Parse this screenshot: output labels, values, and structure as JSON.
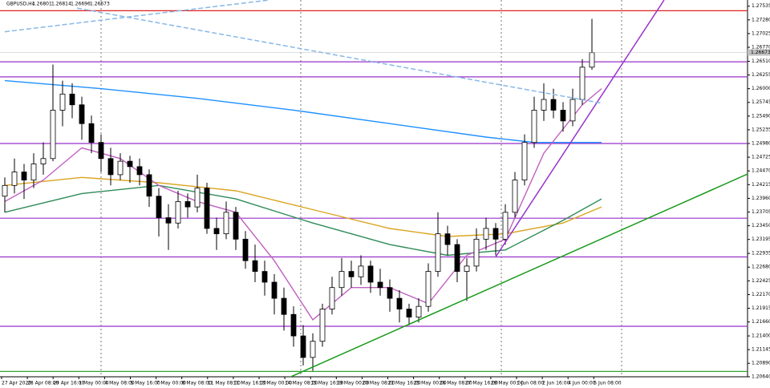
{
  "chart_data": {
    "type": "candlestick",
    "title": "GBPUSD,H4",
    "quote": [
      "1.26801",
      "1.26814",
      "1.26696",
      "1.26673"
    ],
    "current_price": {
      "value": 1.26673,
      "label": "1.26673"
    },
    "ylim": [
      1.2064,
      1.2765
    ],
    "yticks": [
      1.27535,
      {
        "value": 1.2728,
        "label": "1.27280"
      },
      1.27025,
      {
        "value": 1.2677,
        "label": "1.26770"
      },
      {
        "value": 1.2651,
        "label": "1.26510"
      },
      1.26255,
      {
        "value": 1.26,
        "label": "1.26000"
      },
      1.25745,
      {
        "value": 1.2549,
        "label": "1.25490"
      },
      1.25235,
      {
        "value": 1.2498,
        "label": "1.24980"
      },
      1.24725,
      {
        "value": 1.2447,
        "label": "1.24470"
      },
      1.24215,
      {
        "value": 1.2396,
        "label": "1.23960"
      },
      1.23705,
      {
        "value": 1.2345,
        "label": "1.23450"
      },
      1.23195,
      1.22935,
      {
        "value": 1.2268,
        "label": "1.22680"
      },
      1.22425,
      {
        "value": 1.2217,
        "label": "1.22170"
      },
      1.21915,
      {
        "value": 1.2166,
        "label": "1.21660"
      },
      {
        "value": 1.214,
        "label": "1.21400"
      },
      1.21145,
      {
        "value": 1.2089,
        "label": "1.20890"
      },
      {
        "value": 1.2064,
        "label": "1.20640"
      }
    ],
    "categories": [
      "27 Apr 2020",
      "28 Apr 08:00",
      "29 Apr 16:00",
      "1 May 00:00",
      "4 May 08:00",
      "5 May 16:00",
      "7 May 00:00",
      "8 May 08:00",
      "11 May 08:00",
      "11 May 16:00",
      "13 May 00:00",
      "14 May 08:00",
      "15 May 16:00",
      "19 May 00:00",
      "20 May 08:00",
      "21 May 16:00",
      "25 May 00:00",
      "26 May 08:00",
      "27 May 16:00",
      "29 May 00:00",
      "1 Jun 08:00",
      "2 Jun 16:00",
      "4 Jun 00:00",
      "5 Jun 08:00"
    ],
    "candles": [
      [
        1.24,
        1.2435,
        1.237,
        1.242
      ],
      [
        1.242,
        1.247,
        1.2405,
        1.2445
      ],
      [
        1.2445,
        1.246,
        1.2395,
        1.243
      ],
      [
        1.243,
        1.248,
        1.2415,
        1.246
      ],
      [
        1.246,
        1.25,
        1.244,
        1.247
      ],
      [
        1.247,
        1.2645,
        1.2465,
        1.256
      ],
      [
        1.256,
        1.2615,
        1.253,
        1.259
      ],
      [
        1.259,
        1.261,
        1.2545,
        1.257
      ],
      [
        1.257,
        1.2585,
        1.2505,
        1.2535
      ],
      [
        1.2535,
        1.255,
        1.248,
        1.25
      ],
      [
        1.25,
        1.2515,
        1.2445,
        1.247
      ],
      [
        1.247,
        1.249,
        1.242,
        1.244
      ],
      [
        1.244,
        1.248,
        1.243,
        1.2465
      ],
      [
        1.2465,
        1.2475,
        1.2425,
        1.2455
      ],
      [
        1.2455,
        1.247,
        1.242,
        1.244
      ],
      [
        1.244,
        1.245,
        1.238,
        1.24
      ],
      [
        1.24,
        1.2415,
        1.2325,
        1.236
      ],
      [
        1.236,
        1.2385,
        1.23,
        1.235
      ],
      [
        1.235,
        1.241,
        1.234,
        1.239
      ],
      [
        1.239,
        1.2405,
        1.236,
        1.238
      ],
      [
        1.238,
        1.244,
        1.237,
        1.2415
      ],
      [
        1.2415,
        1.2425,
        1.233,
        1.234
      ],
      [
        1.234,
        1.236,
        1.23,
        1.233
      ],
      [
        1.233,
        1.239,
        1.232,
        1.237
      ],
      [
        1.237,
        1.238,
        1.23,
        1.232
      ],
      [
        1.232,
        1.2335,
        1.2265,
        1.228
      ],
      [
        1.228,
        1.231,
        1.224,
        1.226
      ],
      [
        1.226,
        1.228,
        1.2215,
        1.224
      ],
      [
        1.224,
        1.2255,
        1.218,
        1.221
      ],
      [
        1.221,
        1.223,
        1.215,
        1.218
      ],
      [
        1.218,
        1.2195,
        1.212,
        1.214
      ],
      [
        1.214,
        1.216,
        1.2085,
        1.21
      ],
      [
        1.21,
        1.2145,
        1.2075,
        1.213
      ],
      [
        1.213,
        1.22,
        1.212,
        1.219
      ],
      [
        1.219,
        1.225,
        1.218,
        1.223
      ],
      [
        1.223,
        1.2285,
        1.2215,
        1.226
      ],
      [
        1.226,
        1.228,
        1.223,
        1.225
      ],
      [
        1.225,
        1.229,
        1.2235,
        1.227
      ],
      [
        1.227,
        1.228,
        1.222,
        1.224
      ],
      [
        1.224,
        1.2265,
        1.2215,
        1.223
      ],
      [
        1.223,
        1.2245,
        1.2185,
        1.221
      ],
      [
        1.221,
        1.2225,
        1.2165,
        1.219
      ],
      [
        1.219,
        1.22,
        1.216,
        1.2175
      ],
      [
        1.2175,
        1.221,
        1.2165,
        1.2195
      ],
      [
        1.2195,
        1.2275,
        1.2185,
        1.226
      ],
      [
        1.226,
        1.237,
        1.225,
        1.233
      ],
      [
        1.233,
        1.2345,
        1.229,
        1.231
      ],
      [
        1.231,
        1.232,
        1.224,
        1.226
      ],
      [
        1.226,
        1.2285,
        1.2205,
        1.227
      ],
      [
        1.227,
        1.234,
        1.226,
        1.232
      ],
      [
        1.232,
        1.236,
        1.23,
        1.234
      ],
      [
        1.234,
        1.235,
        1.229,
        1.232
      ],
      [
        1.232,
        1.2385,
        1.231,
        1.237
      ],
      [
        1.237,
        1.2445,
        1.236,
        1.243
      ],
      [
        1.243,
        1.2515,
        1.242,
        1.25
      ],
      [
        1.25,
        1.2585,
        1.249,
        1.256
      ],
      [
        1.256,
        1.261,
        1.254,
        1.258
      ],
      [
        1.258,
        1.26,
        1.2545,
        1.256
      ],
      [
        1.256,
        1.2575,
        1.252,
        1.254
      ],
      [
        1.254,
        1.26,
        1.253,
        1.258
      ],
      [
        1.258,
        1.2655,
        1.257,
        1.264
      ],
      [
        1.264,
        1.273,
        1.2635,
        1.2667
      ]
    ],
    "series": [
      {
        "color": "#1e90ff",
        "x": [
          0,
          10,
          20,
          30,
          40,
          50,
          55,
          62
        ],
        "values": [
          1.2615,
          1.26,
          1.2582,
          1.256,
          1.2535,
          1.251,
          1.25,
          1.25
        ]
      },
      {
        "color": "#daa520",
        "x": [
          0,
          8,
          16,
          24,
          32,
          40,
          46,
          52,
          58,
          62
        ],
        "values": [
          1.242,
          1.2435,
          1.2425,
          1.241,
          1.2375,
          1.234,
          1.2325,
          1.233,
          1.235,
          1.238
        ]
      },
      {
        "color": "#2e8b57",
        "x": [
          0,
          8,
          16,
          24,
          32,
          40,
          46,
          52,
          58,
          62
        ],
        "values": [
          1.237,
          1.2405,
          1.242,
          1.2395,
          1.235,
          1.231,
          1.229,
          1.23,
          1.2355,
          1.2395
        ]
      },
      {
        "color": "#c060c0",
        "x": [
          0,
          4,
          8,
          12,
          16,
          20,
          24,
          28,
          32,
          36,
          40,
          44,
          48,
          52,
          56,
          60,
          62
        ],
        "values": [
          1.239,
          1.243,
          1.249,
          1.247,
          1.242,
          1.239,
          1.237,
          1.228,
          1.217,
          1.223,
          1.223,
          1.22,
          1.229,
          1.232,
          1.248,
          1.257,
          1.26
        ]
      }
    ],
    "trendlines": [
      {
        "color": "#1a9a1a",
        "x": [
          29.2,
          77.9
        ],
        "values": [
          1.206,
          1.2447
        ]
      },
      {
        "color": "#9932cc",
        "x": [
          51,
          68.5
        ],
        "values": [
          1.2287,
          1.2765
        ]
      },
      {
        "color": "#87b8e8",
        "dashed": true,
        "x": [
          0,
          27.5
        ],
        "values": [
          1.2706,
          1.2765
        ]
      },
      {
        "color": "#87b8e8",
        "dashed": true,
        "x": [
          7.5,
          62
        ],
        "values": [
          1.275,
          1.2573
        ]
      }
    ],
    "levels": [
      {
        "value": 1.2745,
        "color": "#e02020"
      },
      {
        "value": 1.265,
        "color": "#9932cc"
      },
      {
        "value": 1.2622,
        "color": "#9932cc"
      },
      {
        "value": 1.2498,
        "color": "#9932cc"
      },
      {
        "value": 1.2359,
        "color": "#9932cc"
      },
      {
        "value": 1.2287,
        "color": "#9932cc"
      },
      {
        "value": 1.2158,
        "color": "#9932cc"
      },
      {
        "value": 1.2074,
        "color": "#1a9a1a"
      }
    ]
  }
}
